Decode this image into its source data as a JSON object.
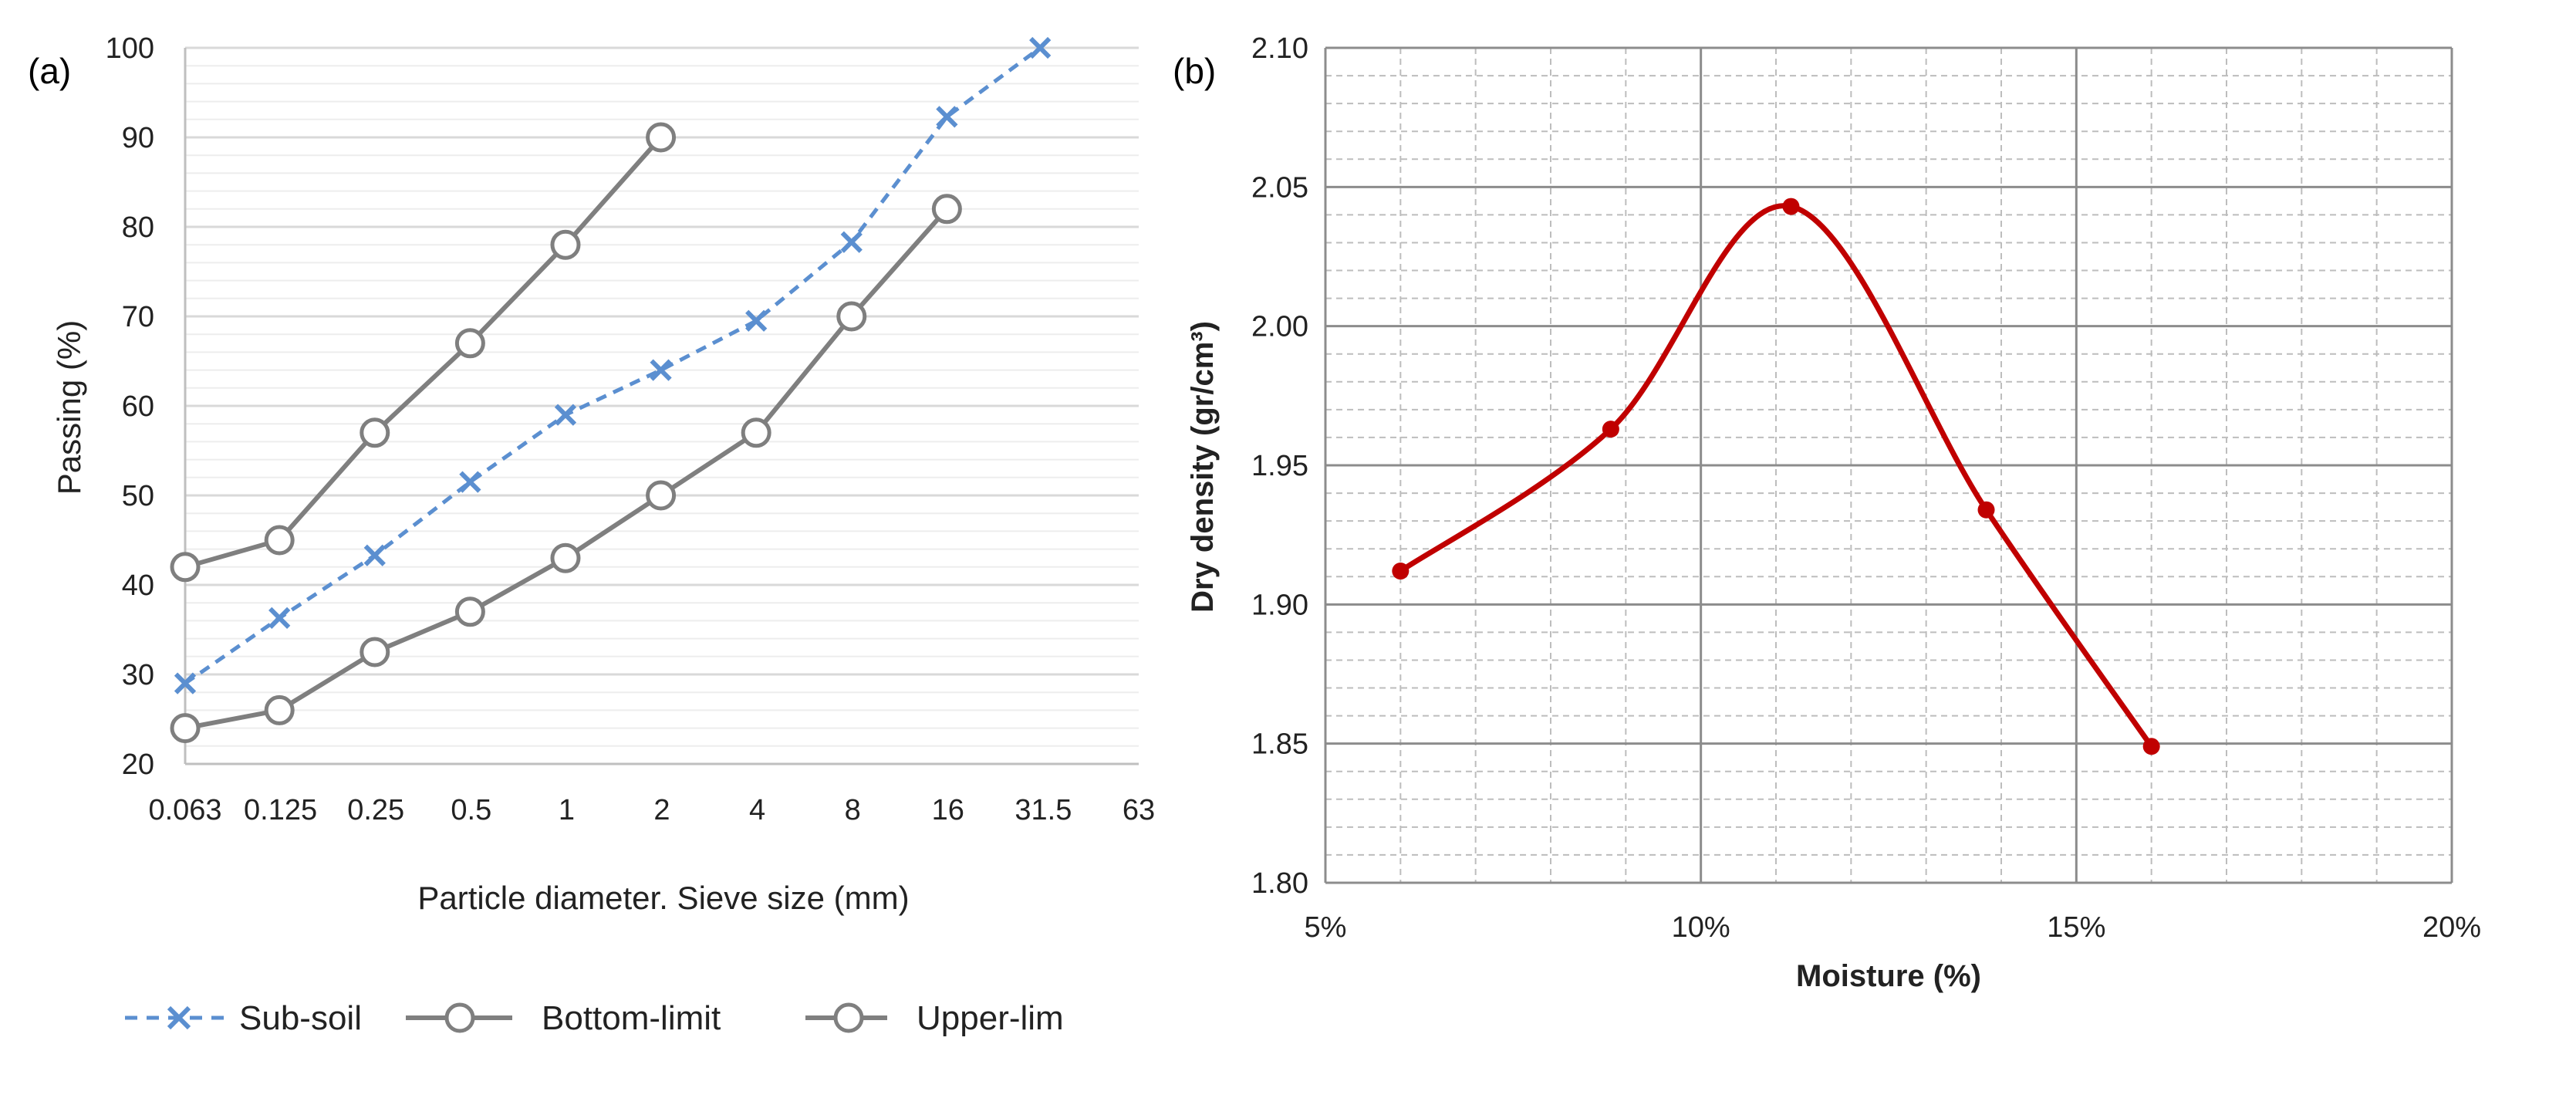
{
  "chart_data": [
    {
      "panel_label": "(a)",
      "type": "line",
      "xlabel": "Particle diameter. Sieve size (mm)",
      "ylabel": "Passing (%)",
      "x_scale": "log2",
      "categories": [
        "0.063",
        "0.125",
        "0.25",
        "0.5",
        "1",
        "2",
        "4",
        "8",
        "16",
        "31.5",
        "63"
      ],
      "yticks": [
        "20",
        "30",
        "40",
        "50",
        "60",
        "70",
        "80",
        "90",
        "100"
      ],
      "ylim": [
        20,
        100
      ],
      "grid": "horizontal major and minor gridlines",
      "legend_position": "bottom",
      "series": [
        {
          "name": "Sub-soil",
          "style": "dashed",
          "marker": "x",
          "color": "#5B8FD0",
          "points": [
            [
              0.063,
              29
            ],
            [
              0.125,
              36.3
            ],
            [
              0.25,
              43.3
            ],
            [
              0.5,
              51.5
            ],
            [
              1,
              59
            ],
            [
              2,
              64
            ],
            [
              4,
              69.5
            ],
            [
              8,
              78.3
            ],
            [
              16,
              92.3
            ],
            [
              31.5,
              100
            ]
          ]
        },
        {
          "name": "Bottom-limit",
          "style": "solid",
          "marker": "circle",
          "color": "#7F7F7F",
          "points": [
            [
              0.063,
              24
            ],
            [
              0.125,
              26
            ],
            [
              0.25,
              32.5
            ],
            [
              0.5,
              37
            ],
            [
              1,
              43
            ],
            [
              2,
              50
            ],
            [
              4,
              57
            ],
            [
              8,
              70
            ],
            [
              16,
              82
            ]
          ]
        },
        {
          "name": "Upper-lim",
          "style": "solid",
          "marker": "circle",
          "color": "#7F7F7F",
          "points": [
            [
              0.063,
              42
            ],
            [
              0.125,
              45
            ],
            [
              0.25,
              57
            ],
            [
              0.5,
              67
            ],
            [
              1,
              78
            ],
            [
              2,
              90
            ]
          ]
        }
      ]
    },
    {
      "panel_label": "(b)",
      "type": "line",
      "xlabel": "Moisture (%)",
      "ylabel": "Dry density (gr/cm³)",
      "xticks": [
        "5%",
        "10%",
        "15%",
        "20%"
      ],
      "xlim": [
        5,
        20
      ],
      "yticks": [
        "1.80",
        "1.85",
        "1.90",
        "1.95",
        "2.00",
        "2.05",
        "2.10"
      ],
      "ylim": [
        1.8,
        2.1
      ],
      "grid": "major solid and minor dashed gridlines",
      "series": [
        {
          "style": "smooth",
          "marker": "circle",
          "color": "#C00000",
          "points": [
            [
              6.0,
              1.912
            ],
            [
              8.8,
              1.963
            ],
            [
              11.2,
              2.043
            ],
            [
              13.8,
              1.934
            ],
            [
              16.0,
              1.849
            ]
          ]
        }
      ]
    }
  ]
}
